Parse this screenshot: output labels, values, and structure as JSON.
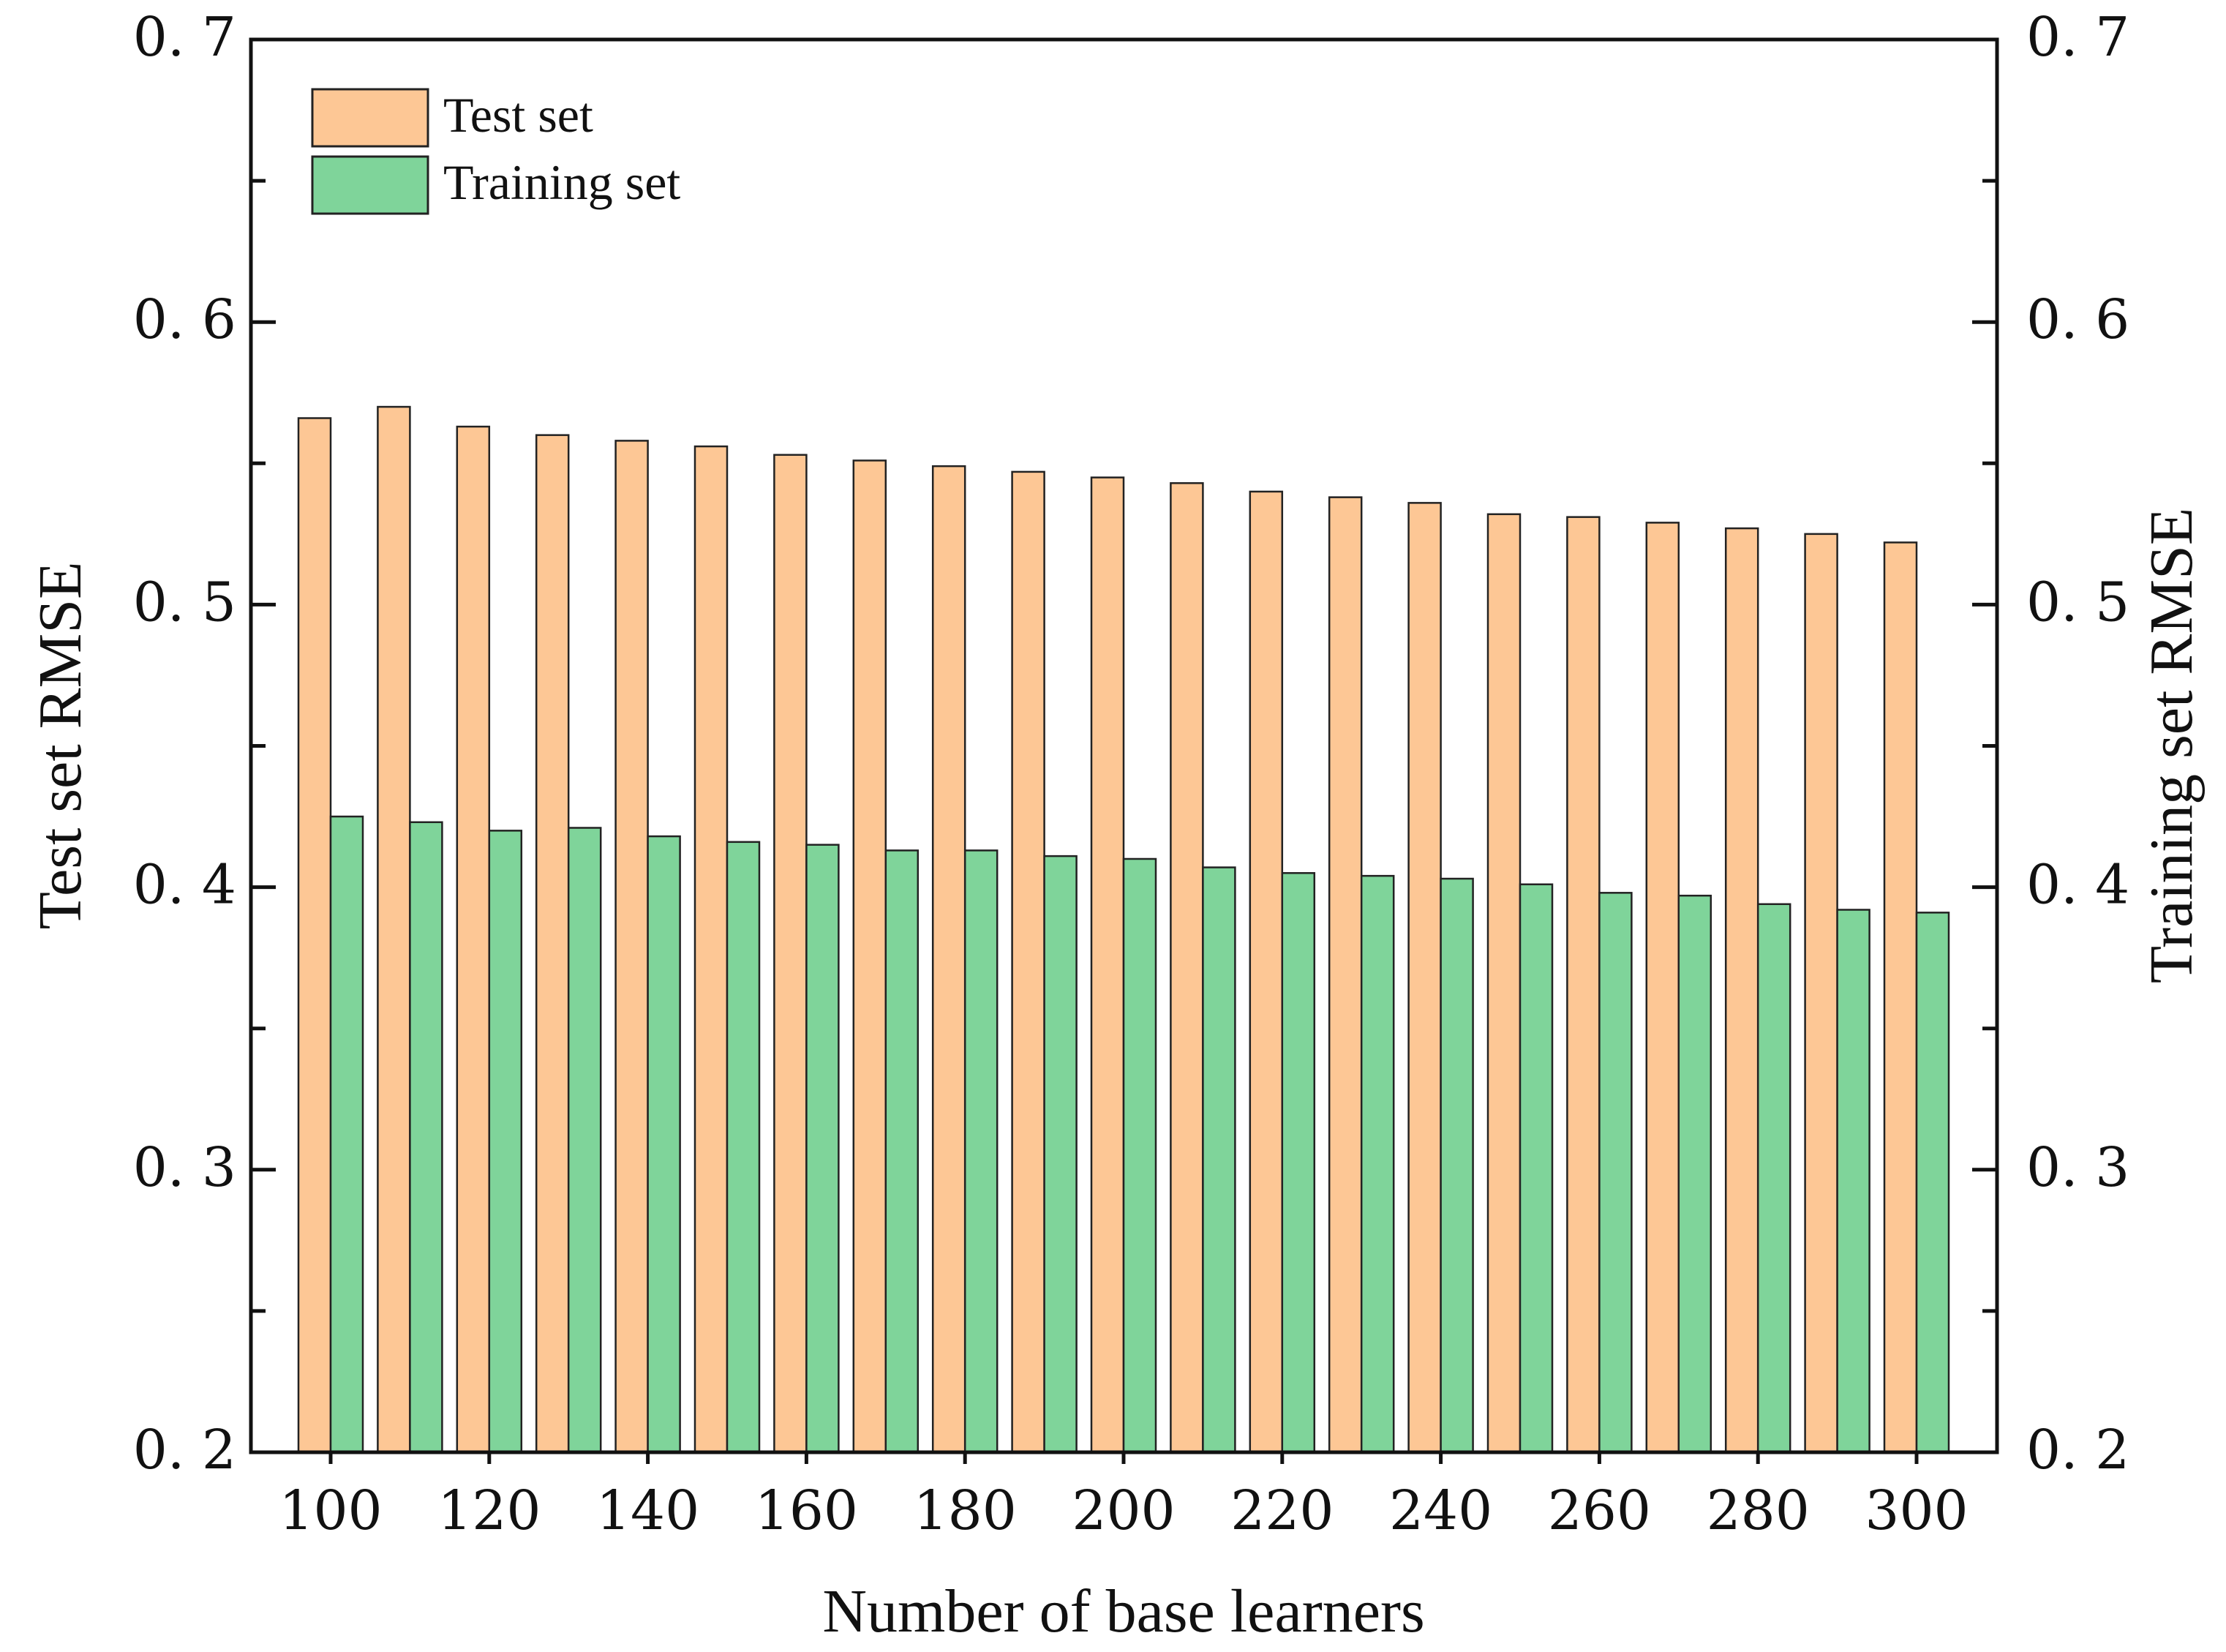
{
  "chart_data": {
    "type": "bar",
    "categories": [
      100,
      110,
      120,
      130,
      140,
      150,
      160,
      170,
      180,
      190,
      200,
      210,
      220,
      230,
      240,
      250,
      260,
      270,
      280,
      290,
      300
    ],
    "x_tick_labels": [
      "100",
      "120",
      "140",
      "160",
      "180",
      "200",
      "220",
      "240",
      "260",
      "280",
      "300"
    ],
    "series": [
      {
        "name": "Test set",
        "axis": "left",
        "color": "#FDC795",
        "values": [
          0.566,
          0.57,
          0.563,
          0.56,
          0.558,
          0.556,
          0.553,
          0.551,
          0.549,
          0.547,
          0.545,
          0.543,
          0.54,
          0.538,
          0.536,
          0.532,
          0.531,
          0.529,
          0.527,
          0.525,
          0.522
        ]
      },
      {
        "name": "Training set",
        "axis": "right",
        "color": "#7FD49A",
        "values": [
          0.425,
          0.423,
          0.42,
          0.421,
          0.418,
          0.416,
          0.415,
          0.413,
          0.413,
          0.411,
          0.41,
          0.407,
          0.405,
          0.404,
          0.403,
          0.401,
          0.398,
          0.397,
          0.394,
          0.392,
          0.391
        ]
      }
    ],
    "xlabel": "Number of base learners",
    "ylabel": "Test set RMSE",
    "ylabel_right": "Training set RMSE",
    "ylim": [
      0.2,
      0.7
    ],
    "y_tick_labels": [
      "0. 2",
      "0. 3",
      "0. 4",
      "0. 5",
      "0. 6",
      "0. 7"
    ],
    "y_tick_labels_right": [
      "0. 2",
      "0. 3",
      "0. 4",
      "0. 5",
      "0. 6",
      "0. 7"
    ],
    "grid": false,
    "legend_position": "top-left"
  }
}
